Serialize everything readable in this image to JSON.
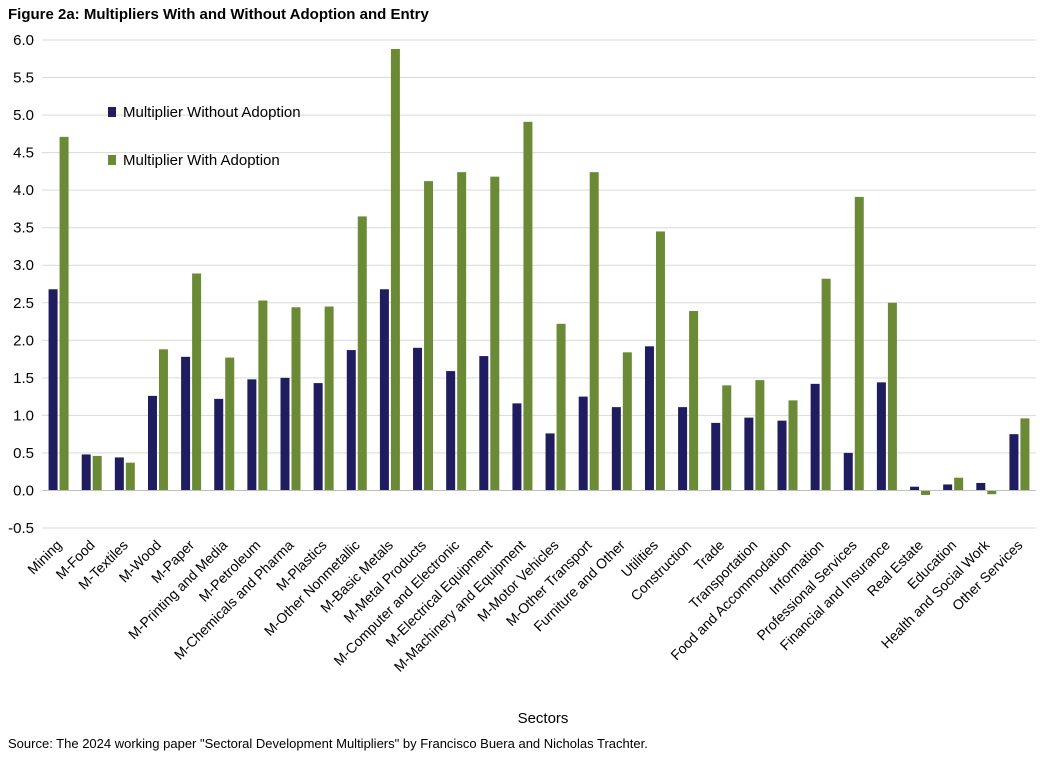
{
  "figure": {
    "title": "Figure 2a: Multipliers With and Without Adoption and Entry",
    "source": "Source: The 2024 working paper \"Sectoral Development Multipliers\" by Francisco Buera and Nicholas Trachter."
  },
  "chart_data": {
    "type": "bar",
    "title": "Figure 2a: Multipliers With and Without Adoption and Entry",
    "xlabel": "Sectors",
    "ylabel": "",
    "ylim": [
      -0.5,
      6.0
    ],
    "yticks": [
      -0.5,
      0.0,
      0.5,
      1.0,
      1.5,
      2.0,
      2.5,
      3.0,
      3.5,
      4.0,
      4.5,
      5.0,
      5.5,
      6.0
    ],
    "ytick_labels": [
      "-0.5",
      "0.0",
      "0.5",
      "1.0",
      "1.5",
      "2.0",
      "2.5",
      "3.0",
      "3.5",
      "4.0",
      "4.5",
      "5.0",
      "5.5",
      "6.0"
    ],
    "grid": true,
    "legend_position": "top-left",
    "categories": [
      "Mining",
      "M-Food",
      "M-Textiles",
      "M-Wood",
      "M-Paper",
      "M-Printing and Media",
      "M-Petroleum",
      "M-Chemicals and Pharma",
      "M-Plastics",
      "M-Other Nonmetallic",
      "M-Basic Metals",
      "M-Metal Products",
      "M-Computer and Electronic",
      "M-Electrical Equipment",
      "M-Machinery and Equipment",
      "M-Motor Vehicles",
      "M-Other Transport",
      "Furniture and Other",
      "Utilities",
      "Construction",
      "Trade",
      "Transportation",
      "Food and Accommodation",
      "Information",
      "Professional Services",
      "Financial and Insurance",
      "Real Estate",
      "Education",
      "Health and Social Work",
      "Other Services"
    ],
    "series": [
      {
        "name": "Multiplier Without Adoption",
        "color": "#201c60",
        "values": [
          2.68,
          0.48,
          0.44,
          1.26,
          1.78,
          1.22,
          1.48,
          1.5,
          1.43,
          1.87,
          2.68,
          1.9,
          1.59,
          1.79,
          1.16,
          0.76,
          1.25,
          1.11,
          1.92,
          1.11,
          0.9,
          0.97,
          0.93,
          1.42,
          0.5,
          1.44,
          0.05,
          0.08,
          0.1,
          0.75
        ]
      },
      {
        "name": "Multiplier With Adoption",
        "color": "#6b8a35",
        "values": [
          4.71,
          0.46,
          0.37,
          1.88,
          2.89,
          1.77,
          2.53,
          2.44,
          2.45,
          3.65,
          5.88,
          4.12,
          4.24,
          4.18,
          4.91,
          2.22,
          4.24,
          1.84,
          3.45,
          2.39,
          1.4,
          1.47,
          1.2,
          2.82,
          3.91,
          2.5,
          -0.06,
          0.17,
          -0.05,
          0.96
        ]
      }
    ]
  }
}
